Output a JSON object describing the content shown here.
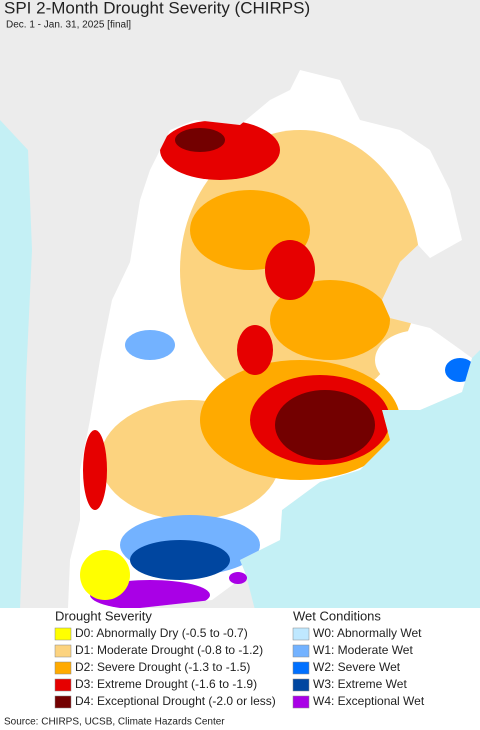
{
  "header": {
    "title": "SPI 2-Month Drought Severity (CHIRPS)",
    "subtitle": "Dec. 1 - Jan. 31, 2025 [final]"
  },
  "legend": {
    "drought": {
      "title": "Drought Severity",
      "items": [
        {
          "label": "D0: Abnormally Dry (-0.5 to -0.7)",
          "color": "#ffff00"
        },
        {
          "label": "D1: Moderate Drought (-0.8 to -1.2)",
          "color": "#fcd37f"
        },
        {
          "label": "D2: Severe Drought (-1.3 to -1.5)",
          "color": "#ffaa00"
        },
        {
          "label": "D3: Extreme Drought (-1.6 to -1.9)",
          "color": "#e60000"
        },
        {
          "label": "D4: Exceptional Drought (-2.0 or less)",
          "color": "#730000"
        }
      ]
    },
    "wet": {
      "title": "Wet Conditions",
      "items": [
        {
          "label": "W0: Abnormally Wet",
          "color": "#bfe8ff"
        },
        {
          "label": "W1: Moderate Wet",
          "color": "#73b2ff"
        },
        {
          "label": "W2: Severe Wet",
          "color": "#0070ff"
        },
        {
          "label": "W3: Extreme Wet",
          "color": "#0046a0"
        },
        {
          "label": "W4: Exceptional Wet",
          "color": "#a900e6"
        }
      ]
    }
  },
  "footer": {
    "source": "Source: CHIRPS, UCSB, Climate Hazards Center"
  }
}
